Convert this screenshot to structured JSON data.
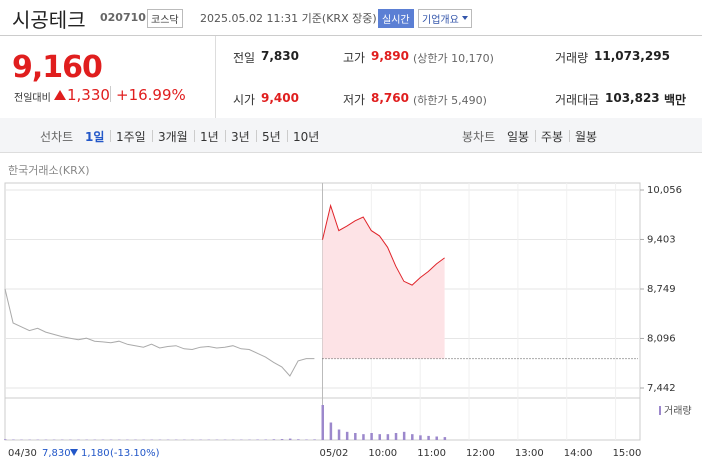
{
  "header": {
    "name": "시공테크",
    "code": "020710",
    "market": "코스닥",
    "timestamp": "2025.05.02 11:31 기준(KRX 장중)",
    "realtime": "실시간",
    "company_info": "기업개요"
  },
  "quote": {
    "price": "9,160",
    "change_label": "전일대비",
    "change": "1,330",
    "change_pct": "+16.99%",
    "stats": [
      {
        "label": "전일",
        "value": "7,830",
        "color": "#222222"
      },
      {
        "label": "고가",
        "value": "9,890",
        "note": "(상한가 10,170)",
        "color": "#e01e1e"
      },
      {
        "label": "거래량",
        "value": "11,073,295",
        "color": "#222222"
      },
      {
        "label": "시가",
        "value": "9,400",
        "color": "#e01e1e"
      },
      {
        "label": "저가",
        "value": "8,760",
        "note": "(하한가 5,490)",
        "color": "#e01e1e"
      },
      {
        "label": "거래대금",
        "value": "103,823",
        "unit": "백만",
        "color": "#222222"
      }
    ]
  },
  "tabs": {
    "line_label": "선차트",
    "line": [
      "1일",
      "1주일",
      "3개월",
      "1년",
      "3년",
      "5년",
      "10년"
    ],
    "selected": 0,
    "candle_label": "봉차트",
    "candle": [
      "일봉",
      "주봉",
      "월봉"
    ]
  },
  "chart_data": {
    "type": "line",
    "source": "한국거래소(KRX)",
    "categories": [
      null,
      null,
      null,
      null,
      null,
      null,
      null,
      null,
      null,
      null,
      null,
      null,
      null,
      null,
      null,
      null,
      null,
      null,
      null,
      null,
      null,
      null,
      null,
      null,
      null,
      null,
      null,
      null,
      null,
      null,
      null,
      null,
      null,
      null,
      null,
      null,
      null,
      null,
      null,
      "05/02",
      null,
      null,
      null,
      null,
      null,
      "10:00",
      null,
      null,
      null,
      null,
      null,
      "11:00",
      null,
      null,
      null,
      null,
      null,
      "12:00",
      null,
      null,
      null,
      null,
      null,
      "13:00",
      null,
      null,
      null,
      null,
      null,
      "14:00",
      null,
      null,
      null,
      null,
      null,
      "15:00",
      null,
      null,
      null
    ],
    "series": [
      {
        "color": "#aaaaaa",
        "values": [
          8750,
          8300,
          8250,
          8200,
          8230,
          8180,
          8150,
          8120,
          8100,
          8080,
          8100,
          8060,
          8050,
          8040,
          8060,
          8020,
          8000,
          7980,
          8020,
          7970,
          7990,
          8000,
          7960,
          7950,
          7980,
          7990,
          7970,
          7980,
          8000,
          7960,
          7950,
          7900,
          7850,
          7780,
          7720,
          7600,
          7800,
          7830,
          7830,
          null,
          null,
          null,
          null,
          null,
          null,
          null,
          null,
          null,
          null,
          null,
          null,
          null,
          null,
          null,
          null,
          null,
          null,
          null,
          null,
          null,
          null,
          null,
          null,
          null,
          null,
          null,
          null,
          null,
          null,
          null,
          null,
          null,
          null,
          null,
          null,
          null,
          null,
          null,
          null
        ]
      },
      {
        "color": "#e0242a",
        "fill": "#fde3e6",
        "values": [
          null,
          null,
          null,
          null,
          null,
          null,
          null,
          null,
          null,
          null,
          null,
          null,
          null,
          null,
          null,
          null,
          null,
          null,
          null,
          null,
          null,
          null,
          null,
          null,
          null,
          null,
          null,
          null,
          null,
          null,
          null,
          null,
          null,
          null,
          null,
          null,
          null,
          null,
          null,
          9400,
          9850,
          9520,
          9580,
          9650,
          9700,
          9520,
          9450,
          9300,
          9050,
          8850,
          8800,
          8900,
          8980,
          9080,
          9160,
          null,
          null,
          null,
          null,
          null,
          null,
          null,
          null,
          null,
          null,
          null,
          null,
          null,
          null,
          null,
          null,
          null,
          null,
          null,
          null,
          null,
          null,
          null,
          null
        ]
      }
    ],
    "volume": {
      "name": "거래량",
      "color": "#9c88cc",
      "values": [
        60000,
        40000,
        30000,
        30000,
        30000,
        30000,
        30000,
        30000,
        30000,
        30000,
        30000,
        30000,
        30000,
        30000,
        30000,
        30000,
        30000,
        30000,
        30000,
        30000,
        30000,
        30000,
        30000,
        30000,
        30000,
        30000,
        30000,
        30000,
        30000,
        30000,
        30000,
        40000,
        40000,
        60000,
        80000,
        120000,
        60000,
        40000,
        50000,
        3000000,
        1500000,
        900000,
        700000,
        600000,
        500000,
        600000,
        500000,
        500000,
        600000,
        700000,
        500000,
        400000,
        350000,
        300000,
        250000,
        null,
        null,
        null,
        null,
        null,
        null,
        null,
        null,
        null,
        null,
        null,
        null,
        null,
        null,
        null,
        null,
        null,
        null,
        null,
        null,
        null,
        null,
        null,
        null
      ]
    },
    "vlim": [
      0,
      3000000
    ],
    "ylim": [
      7442,
      10056
    ],
    "yticks": [
      {
        "value": 7442,
        "label": "7,442"
      },
      {
        "value": 8096,
        "label": "8,096"
      },
      {
        "value": 8749,
        "label": "8,749"
      },
      {
        "value": 9403,
        "label": "9,403"
      },
      {
        "value": 10056,
        "label": "10,056"
      }
    ],
    "reference_line": 7830,
    "grid": true
  },
  "footer": {
    "date": "04/30",
    "close": "7,830",
    "change": "1,180",
    "change_pct": "(-13.10%)"
  }
}
